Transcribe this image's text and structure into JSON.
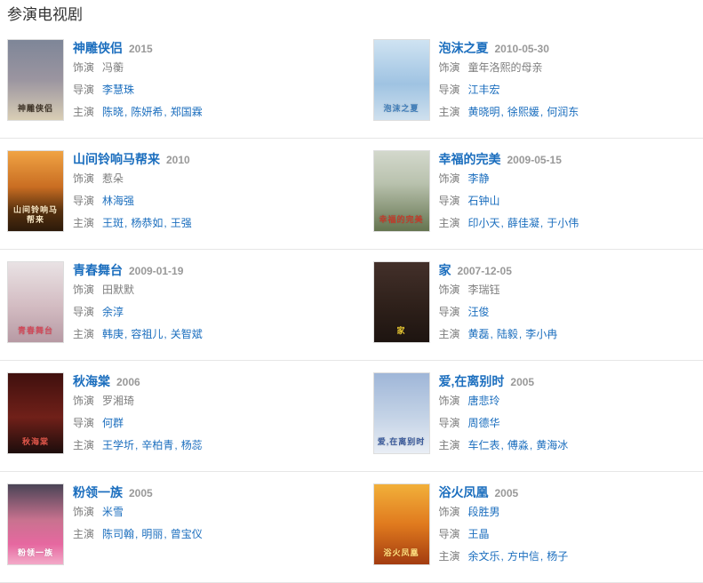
{
  "page": {
    "heading": "参演电视剧"
  },
  "colors": {
    "link": "#1b6ebe",
    "label_grey": "#7d7d7d",
    "date_grey": "#999999",
    "divider": "#e6e6e6",
    "heading_color": "#333333"
  },
  "shows": [
    {
      "title": "神雕侠侣",
      "date": "2015",
      "poster": {
        "caption": "神雕侠侣",
        "caption_color": "#3f3428",
        "bg": "linear-gradient(180deg, #7e8698 0%, #9b95a0 50%, #d9ceb5 100%)"
      },
      "rows": [
        {
          "label": "饰演",
          "values": [
            {
              "text": "冯蘅",
              "link": false
            }
          ]
        },
        {
          "label": "导演",
          "values": [
            {
              "text": "李慧珠",
              "link": true
            }
          ]
        },
        {
          "label": "主演",
          "values": [
            {
              "text": "陈晓",
              "link": true
            },
            {
              "text": "陈妍希",
              "link": true
            },
            {
              "text": "郑国霖",
              "link": true
            }
          ]
        }
      ]
    },
    {
      "title": "泡沫之夏",
      "date": "2010-05-30",
      "poster": {
        "caption": "泡沫之夏",
        "caption_color": "#3e7cb8",
        "bg": "linear-gradient(180deg, #cfe3f2 0%, #9fc3e2 55%, #cfe0ee 100%)"
      },
      "rows": [
        {
          "label": "饰演",
          "values": [
            {
              "text": "童年洛熙的母亲",
              "link": false
            }
          ]
        },
        {
          "label": "导演",
          "values": [
            {
              "text": "江丰宏",
              "link": true
            }
          ]
        },
        {
          "label": "主演",
          "values": [
            {
              "text": "黄晓明",
              "link": true
            },
            {
              "text": "徐熙媛",
              "link": true
            },
            {
              "text": "何润东",
              "link": true
            }
          ]
        }
      ]
    },
    {
      "title": "山间铃响马帮来",
      "date": "2010",
      "poster": {
        "caption": "山间铃响马帮来",
        "caption_color": "#f5e3c0",
        "bg": "linear-gradient(180deg, #f0a344 0%, #c96d22 45%, #55300f 75%, #2c1a0a 100%)"
      },
      "rows": [
        {
          "label": "饰演",
          "values": [
            {
              "text": "惹朵",
              "link": false
            }
          ]
        },
        {
          "label": "导演",
          "values": [
            {
              "text": "林海强",
              "link": true
            }
          ]
        },
        {
          "label": "主演",
          "values": [
            {
              "text": "王斑",
              "link": true
            },
            {
              "text": "杨恭如",
              "link": true
            },
            {
              "text": "王强",
              "link": true
            }
          ]
        }
      ]
    },
    {
      "title": "幸福的完美",
      "date": "2009-05-15",
      "poster": {
        "caption": "幸福的完美",
        "caption_color": "#c23a2a",
        "bg": "linear-gradient(180deg, #d3d8cc 0%, #b9c2ae 40%, #64744f 100%)"
      },
      "rows": [
        {
          "label": "饰演",
          "values": [
            {
              "text": "李静",
              "link": true
            }
          ]
        },
        {
          "label": "导演",
          "values": [
            {
              "text": "石钟山",
              "link": true
            }
          ]
        },
        {
          "label": "主演",
          "values": [
            {
              "text": "印小天",
              "link": true
            },
            {
              "text": "薛佳凝",
              "link": true
            },
            {
              "text": "于小伟",
              "link": true
            }
          ]
        }
      ]
    },
    {
      "title": "青春舞台",
      "date": "2009-01-19",
      "poster": {
        "caption": "青春舞台",
        "caption_color": "#d04a5a",
        "bg": "linear-gradient(180deg, #e9e2e4 0%, #d3bcc2 55%, #b79aa4 100%)"
      },
      "rows": [
        {
          "label": "饰演",
          "values": [
            {
              "text": "田默默",
              "link": false
            }
          ]
        },
        {
          "label": "导演",
          "values": [
            {
              "text": "余淳",
              "link": true
            }
          ]
        },
        {
          "label": "主演",
          "values": [
            {
              "text": "韩庚",
              "link": true
            },
            {
              "text": "容祖儿",
              "link": true
            },
            {
              "text": "关智斌",
              "link": true
            }
          ]
        }
      ]
    },
    {
      "title": "家",
      "date": "2007-12-05",
      "poster": {
        "caption": "家",
        "caption_color": "#e8c832",
        "bg": "linear-gradient(180deg, #43302a 0%, #2e201a 55%, #1d1410 100%)"
      },
      "rows": [
        {
          "label": "饰演",
          "values": [
            {
              "text": "李瑞钰",
              "link": false
            }
          ]
        },
        {
          "label": "导演",
          "values": [
            {
              "text": "汪俊",
              "link": true
            }
          ]
        },
        {
          "label": "主演",
          "values": [
            {
              "text": "黄磊",
              "link": true
            },
            {
              "text": "陆毅",
              "link": true
            },
            {
              "text": "李小冉",
              "link": true
            }
          ]
        }
      ]
    },
    {
      "title": "秋海棠",
      "date": "2006",
      "poster": {
        "caption": "秋海棠",
        "caption_color": "#e0564a",
        "bg": "linear-gradient(180deg, #40100e 0%, #702019 55%, #1c0d0c 100%)"
      },
      "rows": [
        {
          "label": "饰演",
          "values": [
            {
              "text": "罗湘琦",
              "link": false
            }
          ]
        },
        {
          "label": "导演",
          "values": [
            {
              "text": "何群",
              "link": true
            }
          ]
        },
        {
          "label": "主演",
          "values": [
            {
              "text": "王学圻",
              "link": true
            },
            {
              "text": "辛柏青",
              "link": true
            },
            {
              "text": "杨蕊",
              "link": true
            }
          ]
        }
      ]
    },
    {
      "title": "爱,在离别时",
      "date": "2005",
      "poster": {
        "caption": "爱,在离别时",
        "caption_color": "#39599a",
        "bg": "linear-gradient(180deg, #9fb6d8 0%, #c4d3e6 55%, #e9eef5 100%)"
      },
      "rows": [
        {
          "label": "饰演",
          "values": [
            {
              "text": "唐悲玲",
              "link": true
            }
          ]
        },
        {
          "label": "导演",
          "values": [
            {
              "text": "周德华",
              "link": true
            }
          ]
        },
        {
          "label": "主演",
          "values": [
            {
              "text": "车仁表",
              "link": true
            },
            {
              "text": "傅淼",
              "link": true
            },
            {
              "text": "黄海冰",
              "link": true
            }
          ]
        }
      ]
    },
    {
      "title": "粉领一族",
      "date": "2005",
      "poster": {
        "caption": "粉领一族",
        "caption_color": "#ffffff",
        "bg": "linear-gradient(180deg, #4a4456 0%, #c9728f 45%, #e668a0 75%, #f3aac8 100%)"
      },
      "rows": [
        {
          "label": "饰演",
          "values": [
            {
              "text": "米雪",
              "link": true
            }
          ]
        },
        {
          "label": "主演",
          "values": [
            {
              "text": "陈司翰",
              "link": true
            },
            {
              "text": "明丽",
              "link": true
            },
            {
              "text": "曾宝仪",
              "link": true
            }
          ]
        }
      ]
    },
    {
      "title": "浴火凤凰",
      "date": "2005",
      "poster": {
        "caption": "浴火凤凰",
        "caption_color": "#ffe080",
        "bg": "linear-gradient(180deg, #f2b03a 0%, #e07a1e 50%, #a33c10 100%)"
      },
      "rows": [
        {
          "label": "饰演",
          "values": [
            {
              "text": "段胜男",
              "link": true
            }
          ]
        },
        {
          "label": "导演",
          "values": [
            {
              "text": "王晶",
              "link": true
            }
          ]
        },
        {
          "label": "主演",
          "values": [
            {
              "text": "余文乐",
              "link": true
            },
            {
              "text": "方中信",
              "link": true
            },
            {
              "text": "杨子",
              "link": true
            }
          ]
        }
      ]
    }
  ]
}
